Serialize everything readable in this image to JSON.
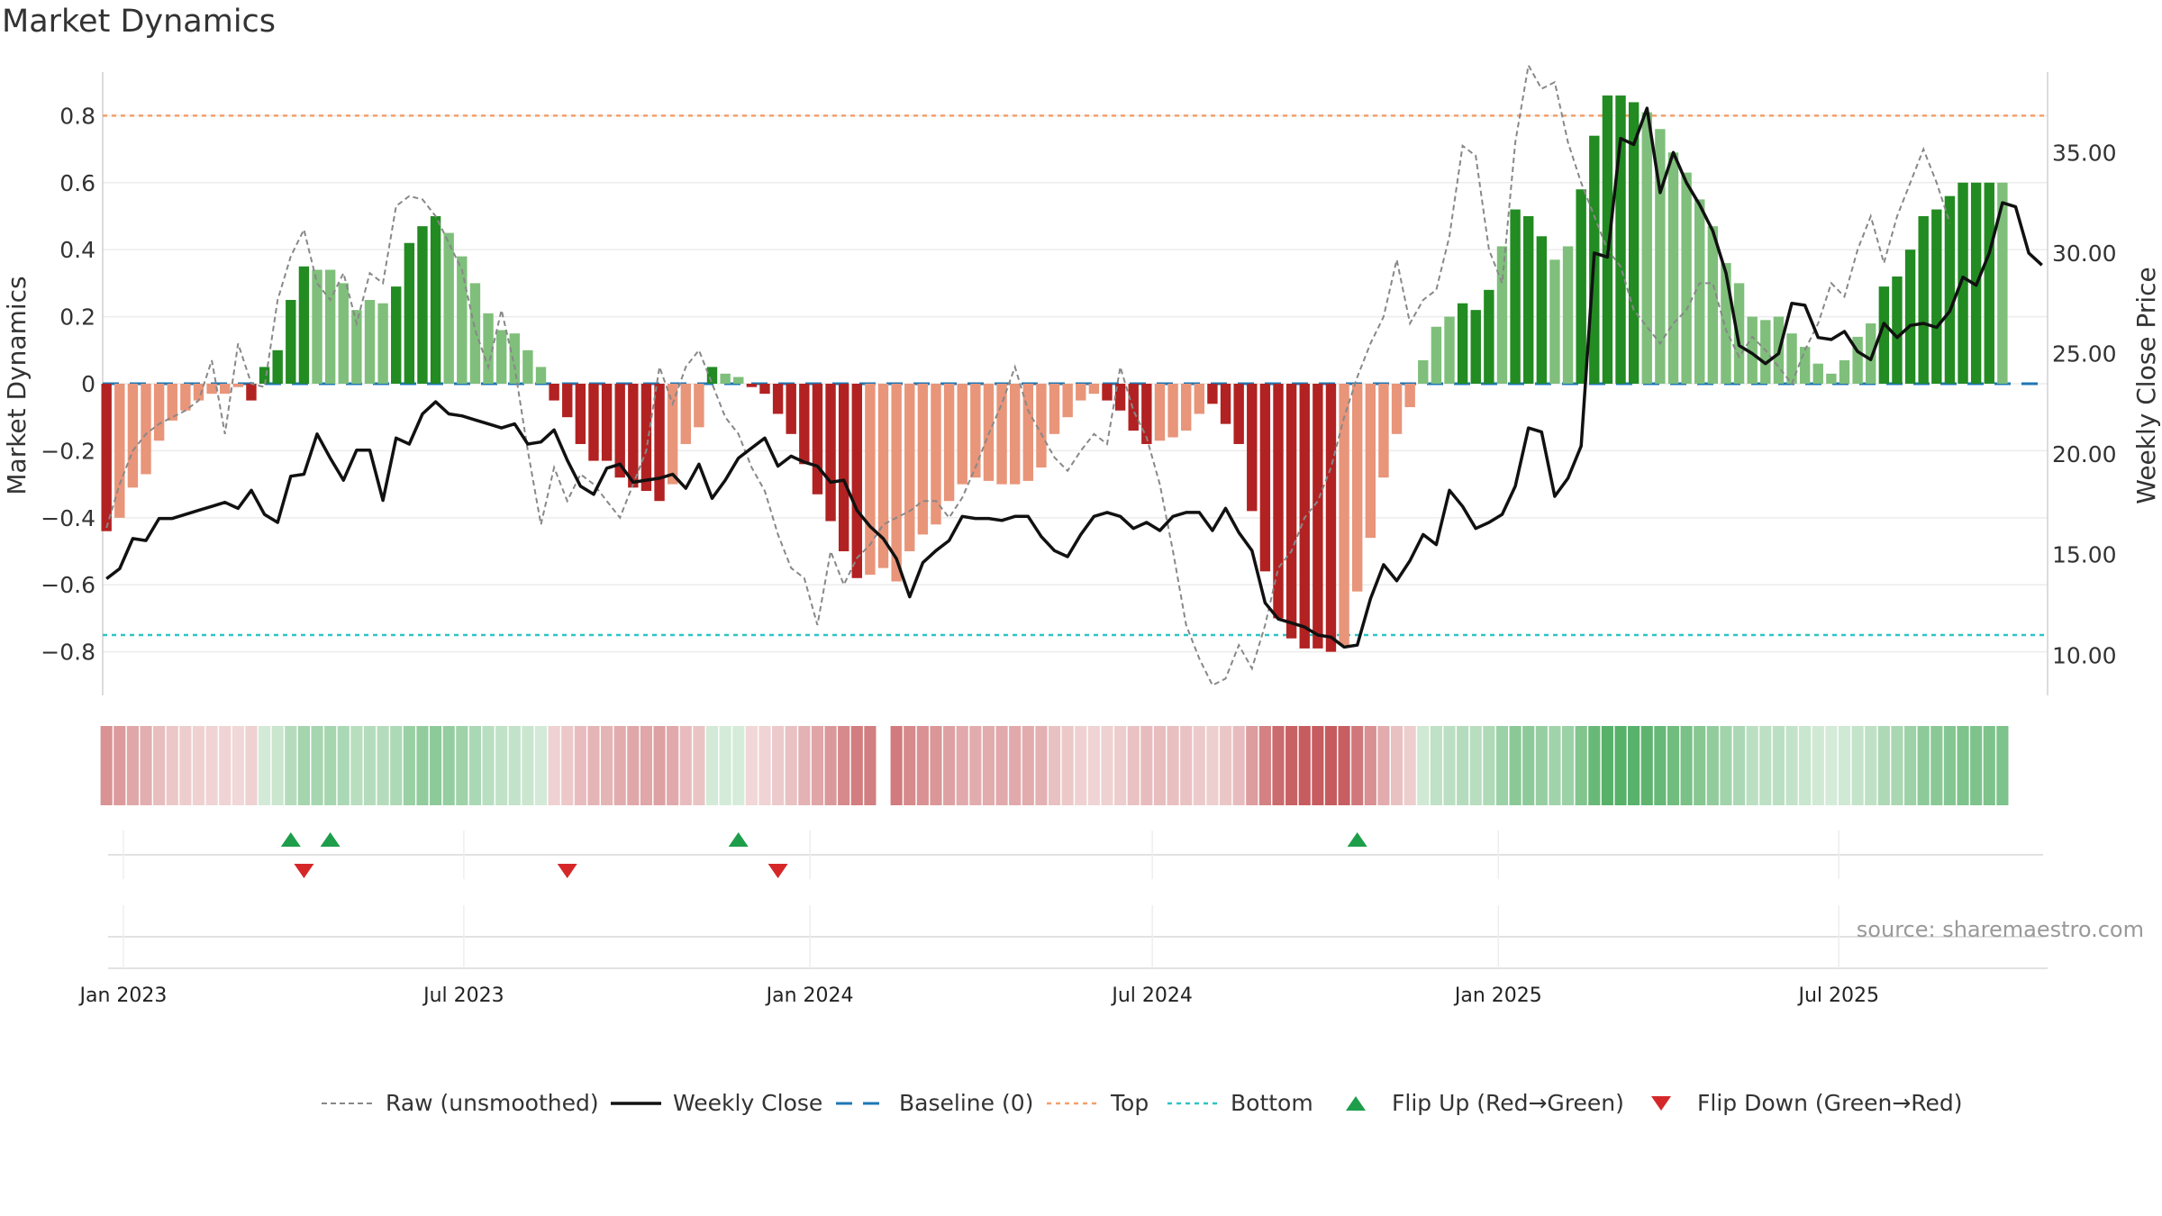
{
  "chart_data": {
    "type": "bar",
    "title": "Market Dynamics",
    "ylabel": "Market Dynamics",
    "y2label": "Weekly Close Price",
    "ylim": [
      -0.93,
      0.93
    ],
    "y2lim": [
      8.0,
      39.0
    ],
    "xlim": [
      "2022-12-21",
      "2025-10-20"
    ],
    "yticks": [
      "0.8",
      "0.6",
      "0.4",
      "0.2",
      "0",
      "−0.2",
      "−0.4",
      "−0.6",
      "−0.8"
    ],
    "ytick_values": [
      0.8,
      0.6,
      0.4,
      0.2,
      0,
      -0.2,
      -0.4,
      -0.6,
      -0.8
    ],
    "y2ticks": [
      "35.00",
      "30.00",
      "25.00",
      "20.00",
      "15.00",
      "10.00"
    ],
    "y2tick_values": [
      35,
      30,
      25,
      20,
      15,
      10
    ],
    "xticks": [
      {
        "date": "2023-01-01",
        "label": "Jan 2023"
      },
      {
        "date": "2023-07-01",
        "label": "Jul 2023"
      },
      {
        "date": "2024-01-01",
        "label": "Jan 2024"
      },
      {
        "date": "2024-07-01",
        "label": "Jul 2024"
      },
      {
        "date": "2025-01-01",
        "label": "Jan 2025"
      },
      {
        "date": "2025-07-01",
        "label": "Jul 2025"
      }
    ],
    "start_week": "2022-12-23",
    "interval_days": 7,
    "histogram": [
      -0.44,
      -0.4,
      -0.31,
      -0.27,
      -0.17,
      -0.11,
      -0.08,
      -0.05,
      -0.03,
      -0.03,
      -0.01,
      -0.05,
      0.05,
      0.1,
      0.25,
      0.35,
      0.34,
      0.34,
      0.3,
      0.22,
      0.25,
      0.24,
      0.29,
      0.42,
      0.47,
      0.5,
      0.45,
      0.38,
      0.3,
      0.21,
      0.16,
      0.15,
      0.1,
      0.05,
      -0.05,
      -0.1,
      -0.18,
      -0.23,
      -0.23,
      -0.28,
      -0.31,
      -0.32,
      -0.35,
      -0.3,
      -0.18,
      -0.13,
      0.05,
      0.03,
      0.02,
      -0.01,
      -0.03,
      -0.09,
      -0.15,
      -0.24,
      -0.33,
      -0.41,
      -0.5,
      -0.58,
      -0.57,
      -0.55,
      -0.59,
      -0.5,
      -0.45,
      -0.42,
      -0.35,
      -0.3,
      -0.28,
      -0.29,
      -0.3,
      -0.3,
      -0.29,
      -0.25,
      -0.15,
      -0.1,
      -0.05,
      -0.03,
      -0.05,
      -0.08,
      -0.14,
      -0.18,
      -0.17,
      -0.16,
      -0.14,
      -0.09,
      -0.06,
      -0.12,
      -0.18,
      -0.38,
      -0.56,
      -0.7,
      -0.76,
      -0.79,
      -0.79,
      -0.8,
      -0.78,
      -0.62,
      -0.46,
      -0.28,
      -0.15,
      -0.07,
      0.07,
      0.17,
      0.2,
      0.24,
      0.22,
      0.28,
      0.41,
      0.52,
      0.5,
      0.44,
      0.37,
      0.41,
      0.58,
      0.74,
      0.86,
      0.86,
      0.84,
      0.81,
      0.76,
      0.69,
      0.63,
      0.55,
      0.47,
      0.36,
      0.3,
      0.2,
      0.19,
      0.2,
      0.15,
      0.11,
      0.06,
      0.03,
      0.07,
      0.14,
      0.18,
      0.29,
      0.32,
      0.4,
      0.5,
      0.52,
      0.56,
      0.6,
      0.6,
      0.6,
      0.6
    ],
    "histogram_dark": [
      true,
      false,
      false,
      false,
      false,
      false,
      false,
      false,
      false,
      false,
      false,
      true,
      true,
      true,
      true,
      true,
      false,
      false,
      false,
      false,
      false,
      false,
      true,
      true,
      true,
      true,
      false,
      false,
      false,
      false,
      false,
      false,
      false,
      false,
      true,
      true,
      true,
      true,
      true,
      true,
      true,
      true,
      true,
      false,
      false,
      false,
      true,
      false,
      false,
      true,
      true,
      true,
      true,
      true,
      true,
      true,
      true,
      true,
      false,
      false,
      false,
      false,
      false,
      false,
      false,
      false,
      false,
      false,
      false,
      false,
      false,
      false,
      false,
      false,
      false,
      false,
      true,
      true,
      true,
      true,
      false,
      false,
      false,
      false,
      true,
      true,
      true,
      true,
      true,
      true,
      true,
      true,
      true,
      true,
      false,
      false,
      false,
      false,
      false,
      false,
      false,
      false,
      false,
      true,
      true,
      true,
      false,
      true,
      true,
      true,
      false,
      false,
      true,
      true,
      true,
      true,
      true,
      false,
      false,
      false,
      false,
      false,
      false,
      false,
      false,
      false,
      false,
      false,
      false,
      false,
      false,
      false,
      false,
      false,
      false,
      true,
      true,
      true,
      true,
      true,
      true,
      true,
      true,
      true,
      false,
      false,
      false
    ],
    "series": [
      {
        "name": "Raw (unsmoothed)",
        "values": [
          -0.43,
          -0.3,
          -0.2,
          -0.15,
          -0.12,
          -0.1,
          -0.08,
          -0.05,
          0.07,
          -0.15,
          0.12,
          0.0,
          -0.01,
          0.25,
          0.38,
          0.46,
          0.3,
          0.25,
          0.33,
          0.18,
          0.33,
          0.3,
          0.53,
          0.56,
          0.55,
          0.5,
          0.42,
          0.34,
          0.16,
          0.05,
          0.22,
          0.05,
          -0.2,
          -0.42,
          -0.25,
          -0.35,
          -0.27,
          -0.3,
          -0.35,
          -0.4,
          -0.3,
          -0.2,
          0.05,
          -0.06,
          0.05,
          0.1,
          0.0,
          -0.1,
          -0.15,
          -0.25,
          -0.32,
          -0.45,
          -0.55,
          -0.58,
          -0.72,
          -0.5,
          -0.6,
          -0.52,
          -0.48,
          -0.42,
          -0.4,
          -0.38,
          -0.35,
          -0.35,
          -0.4,
          -0.34,
          -0.25,
          -0.15,
          -0.06,
          0.05,
          -0.08,
          -0.15,
          -0.22,
          -0.26,
          -0.2,
          -0.15,
          -0.18,
          0.05,
          -0.08,
          -0.16,
          -0.3,
          -0.5,
          -0.72,
          -0.82,
          -0.9,
          -0.88,
          -0.78,
          -0.85,
          -0.72,
          -0.55,
          -0.5,
          -0.4,
          -0.35,
          -0.25,
          -0.1,
          0.02,
          0.12,
          0.2,
          0.37,
          0.18,
          0.25,
          0.28,
          0.44,
          0.71,
          0.68,
          0.4,
          0.3,
          0.72,
          0.95,
          0.88,
          0.9,
          0.72,
          0.6,
          0.5,
          0.4,
          0.35,
          0.22,
          0.17,
          0.12,
          0.18,
          0.22,
          0.3,
          0.3,
          0.16,
          0.08,
          0.14,
          0.1,
          0.05,
          0.0,
          0.1,
          0.18,
          0.3,
          0.26,
          0.4,
          0.5,
          0.36,
          0.5,
          0.6,
          0.7,
          0.6,
          0.48
        ]
      },
      {
        "name": "Weekly Close",
        "axis": "right",
        "values": [
          13.8,
          14.3,
          15.8,
          15.7,
          16.8,
          16.8,
          17.0,
          17.2,
          17.4,
          17.6,
          17.3,
          18.2,
          17.0,
          16.6,
          18.9,
          19.0,
          21.0,
          19.8,
          18.7,
          20.2,
          20.2,
          17.7,
          20.8,
          20.5,
          22.0,
          22.6,
          22.0,
          21.9,
          21.7,
          21.5,
          21.3,
          21.5,
          20.5,
          20.6,
          21.2,
          19.7,
          18.4,
          18.0,
          19.3,
          19.5,
          18.6,
          18.7,
          18.8,
          19.0,
          18.3,
          19.5,
          17.8,
          18.7,
          19.8,
          20.3,
          20.8,
          19.4,
          19.9,
          19.6,
          19.4,
          18.6,
          18.7,
          17.2,
          16.4,
          15.8,
          14.8,
          12.9,
          14.6,
          15.2,
          15.7,
          16.9,
          16.8,
          16.8,
          16.7,
          16.9,
          16.9,
          15.9,
          15.2,
          14.9,
          16.0,
          16.9,
          17.1,
          16.9,
          16.3,
          16.6,
          16.2,
          16.9,
          17.1,
          17.1,
          16.2,
          17.3,
          16.1,
          15.2,
          12.6,
          11.8,
          11.6,
          11.4,
          11.0,
          10.9,
          10.4,
          10.5,
          12.8,
          14.5,
          13.7,
          14.7,
          16.0,
          15.5,
          18.2,
          17.4,
          16.3,
          16.6,
          17.0,
          18.4,
          21.3,
          21.1,
          17.9,
          18.8,
          20.4,
          30.0,
          29.8,
          35.7,
          35.4,
          37.2,
          33.0,
          35.0,
          33.5,
          32.4,
          31.1,
          29.0,
          25.4,
          25.0,
          24.5,
          25.0,
          27.5,
          27.4,
          25.8,
          25.7,
          26.1,
          25.1,
          24.7,
          26.5,
          25.8,
          26.4,
          26.5,
          26.3,
          27.1,
          28.8,
          28.4,
          30.0,
          32.5,
          32.3,
          30.0,
          29.4
        ]
      }
    ],
    "hlines": [
      {
        "name": "Baseline (0)",
        "value": 0,
        "color": "#1f77b4"
      },
      {
        "name": "Top",
        "value": 0.8,
        "color": "#f4a06a"
      },
      {
        "name": "Bottom",
        "value": -0.75,
        "color": "#2ec4c4"
      }
    ],
    "flips": {
      "up_name": "Flip Up (Red→Green)",
      "down_name": "Flip Down (Green→Red)",
      "up_dates": [
        "2023-03-31",
        "2023-04-21",
        "2023-11-24",
        "2024-10-18"
      ],
      "down_dates": [
        "2023-04-07",
        "2023-08-25",
        "2023-12-15"
      ]
    },
    "regime_band": {
      "gap_index": 59
    },
    "source_note": "source: sharemaestro.com",
    "legend_position": "bottom-center",
    "grid": true,
    "colors": {
      "pos_dark": "#228b22",
      "pos_light": "#7fbf7b",
      "neg_dark": "#b22222",
      "neg_light": "#e8957a",
      "raw": "#888888",
      "close": "#111111",
      "flip_up": "#1e9e4a",
      "flip_down": "#d62728"
    }
  }
}
